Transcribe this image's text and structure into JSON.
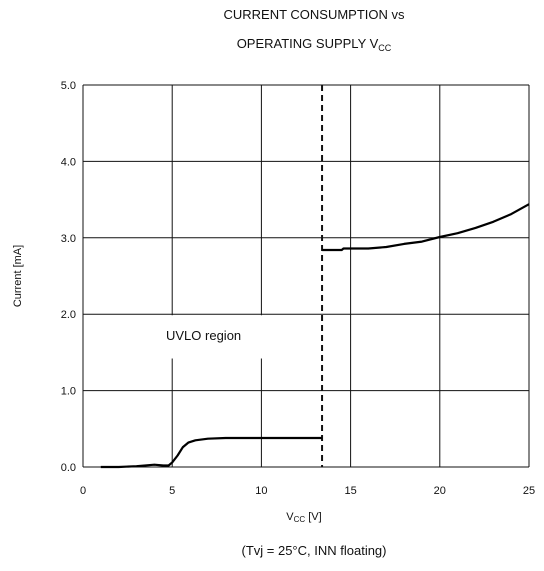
{
  "chart_data": {
    "type": "line",
    "title_line1": "CURRENT CONSUMPTION  vs",
    "title_line2_main": "OPERATING SUPPLY V",
    "title_line2_sub": "CC",
    "xlabel_main": "V",
    "xlabel_sub": "CC",
    "xlabel_unit": " [V]",
    "ylabel": "Current [mA]",
    "footnote": "(Tvj = 25°C, INN floating)",
    "annotation": "UVLO region",
    "xlim": [
      0,
      25
    ],
    "ylim": [
      0,
      5
    ],
    "x_ticks": [
      0,
      5,
      10,
      15,
      20,
      25
    ],
    "y_ticks": [
      "0.0",
      "1.0",
      "2.0",
      "3.0",
      "4.0",
      "5.0"
    ],
    "grid": true,
    "uvlo_threshold_v": 13.4,
    "series": [
      {
        "segments": [
          [
            [
              1.0,
              0.0
            ],
            [
              2.0,
              0.0
            ],
            [
              3.0,
              0.01
            ],
            [
              4.0,
              0.03
            ],
            [
              4.5,
              0.02
            ],
            [
              4.8,
              0.02
            ],
            [
              5.0,
              0.06
            ],
            [
              5.3,
              0.15
            ],
            [
              5.6,
              0.26
            ],
            [
              5.9,
              0.32
            ],
            [
              6.3,
              0.35
            ],
            [
              7.0,
              0.37
            ],
            [
              8.0,
              0.38
            ],
            [
              9.0,
              0.38
            ],
            [
              10.0,
              0.38
            ],
            [
              11.0,
              0.38
            ],
            [
              12.0,
              0.38
            ],
            [
              13.4,
              0.38
            ]
          ],
          [
            [
              13.4,
              2.84
            ],
            [
              14.0,
              2.84
            ],
            [
              14.5,
              2.84
            ],
            [
              14.6,
              2.86
            ],
            [
              15.0,
              2.86
            ],
            [
              16.0,
              2.86
            ],
            [
              17.0,
              2.88
            ],
            [
              18.0,
              2.92
            ],
            [
              19.0,
              2.95
            ],
            [
              20.0,
              3.01
            ],
            [
              21.0,
              3.06
            ],
            [
              22.0,
              3.13
            ],
            [
              23.0,
              3.21
            ],
            [
              24.0,
              3.31
            ],
            [
              25.0,
              3.44
            ]
          ]
        ]
      }
    ]
  }
}
